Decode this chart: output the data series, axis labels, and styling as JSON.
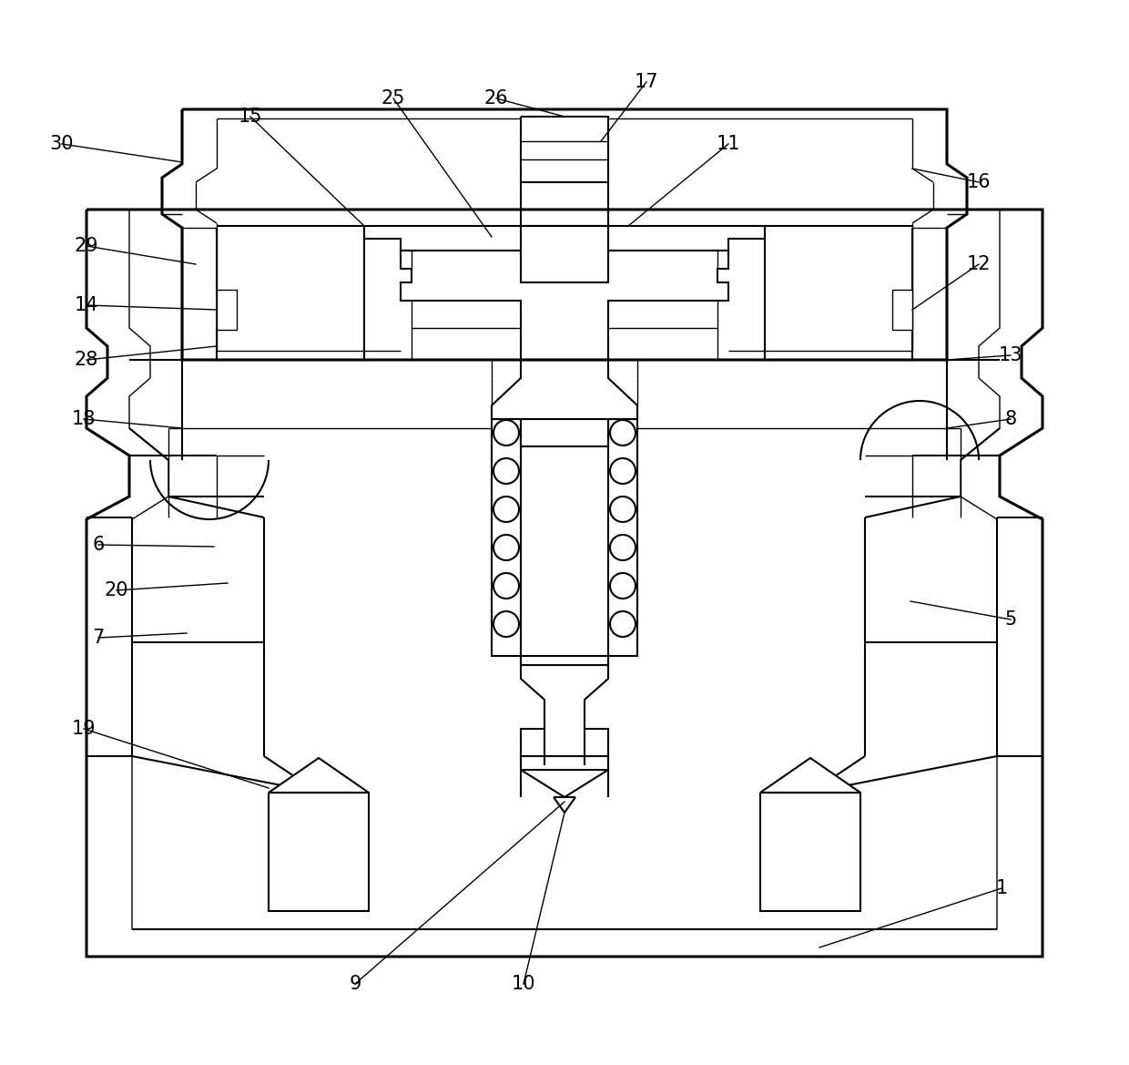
{
  "bg_color": "#ffffff",
  "line_color": "#000000",
  "lw_thick": 2.2,
  "lw_med": 1.5,
  "lw_thin": 1.0,
  "fig_width": 12.4,
  "fig_height": 11.69,
  "dpi": 100
}
